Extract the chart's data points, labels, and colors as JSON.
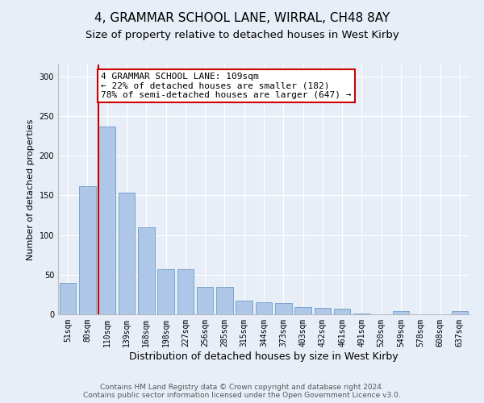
{
  "title": "4, GRAMMAR SCHOOL LANE, WIRRAL, CH48 8AY",
  "subtitle": "Size of property relative to detached houses in West Kirby",
  "xlabel": "Distribution of detached houses by size in West Kirby",
  "ylabel": "Number of detached properties",
  "categories": [
    "51sqm",
    "80sqm",
    "110sqm",
    "139sqm",
    "168sqm",
    "198sqm",
    "227sqm",
    "256sqm",
    "285sqm",
    "315sqm",
    "344sqm",
    "373sqm",
    "403sqm",
    "432sqm",
    "461sqm",
    "491sqm",
    "520sqm",
    "549sqm",
    "578sqm",
    "608sqm",
    "637sqm"
  ],
  "values": [
    40,
    162,
    237,
    153,
    110,
    57,
    57,
    35,
    35,
    17,
    15,
    14,
    9,
    8,
    7,
    1,
    0,
    4,
    0,
    0,
    4
  ],
  "bar_color": "#aec6e8",
  "bar_edge_color": "#5a8fc0",
  "highlight_line_index": 2,
  "highlight_line_color": "#cc0000",
  "annotation_text": "4 GRAMMAR SCHOOL LANE: 109sqm\n← 22% of detached houses are smaller (182)\n78% of semi-detached houses are larger (647) →",
  "annotation_box_color": "#ffffff",
  "annotation_box_edge_color": "#cc0000",
  "ylim": [
    0,
    315
  ],
  "yticks": [
    0,
    50,
    100,
    150,
    200,
    250,
    300
  ],
  "bg_color": "#e8eef7",
  "plot_bg_color": "#e8eef7",
  "footer_line1": "Contains HM Land Registry data © Crown copyright and database right 2024.",
  "footer_line2": "Contains public sector information licensed under the Open Government Licence v3.0.",
  "title_fontsize": 11,
  "subtitle_fontsize": 9.5,
  "annotation_fontsize": 8,
  "tick_fontsize": 7,
  "ylabel_fontsize": 8,
  "xlabel_fontsize": 9
}
